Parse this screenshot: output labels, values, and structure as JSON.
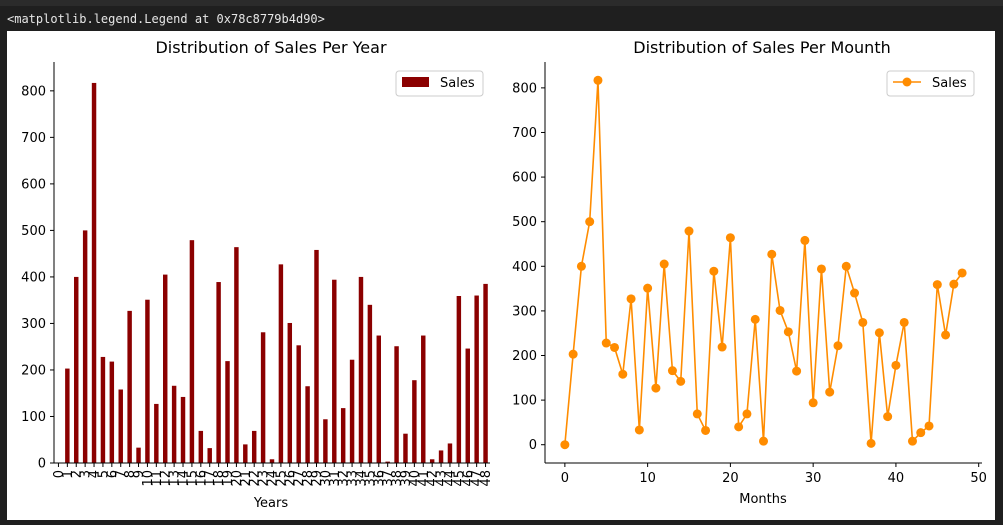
{
  "output_text": "<matplotlib.legend.Legend at 0x78c8779b4d90>",
  "colors": {
    "bar": "#8b0000",
    "line": "#ff8c00"
  },
  "chart_data": [
    {
      "type": "bar",
      "title": "Distribution of Sales Per Year",
      "xlabel": "Years",
      "ylabel": "",
      "legend": {
        "label": "Sales",
        "placement": "top-right"
      },
      "categories": [
        0,
        1,
        2,
        3,
        4,
        5,
        6,
        7,
        8,
        9,
        10,
        11,
        12,
        13,
        14,
        15,
        16,
        17,
        18,
        19,
        20,
        21,
        22,
        23,
        24,
        25,
        26,
        27,
        28,
        29,
        30,
        31,
        32,
        33,
        34,
        35,
        36,
        37,
        38,
        39,
        40,
        41,
        42,
        43,
        44,
        45,
        46,
        47,
        48
      ],
      "values": [
        0,
        203,
        400,
        500,
        817,
        228,
        218,
        158,
        327,
        33,
        351,
        127,
        405,
        166,
        142,
        479,
        69,
        32,
        389,
        219,
        464,
        40,
        69,
        281,
        8,
        427,
        301,
        253,
        165,
        458,
        94,
        394,
        118,
        222,
        400,
        340,
        274,
        3,
        251,
        63,
        178,
        274,
        8,
        27,
        42,
        359,
        246,
        360,
        385
      ],
      "ylim": [
        0,
        862
      ],
      "yticks": [
        0,
        100,
        200,
        300,
        400,
        500,
        600,
        700,
        800
      ]
    },
    {
      "type": "line",
      "title": "Distribution of Sales Per Mounth",
      "xlabel": "Months",
      "ylabel": "",
      "legend": {
        "label": "Sales",
        "placement": "top-right"
      },
      "x": [
        0,
        1,
        2,
        3,
        4,
        5,
        6,
        7,
        8,
        9,
        10,
        11,
        12,
        13,
        14,
        15,
        16,
        17,
        18,
        19,
        20,
        21,
        22,
        23,
        24,
        25,
        26,
        27,
        28,
        29,
        30,
        31,
        32,
        33,
        34,
        35,
        36,
        37,
        38,
        39,
        40,
        41,
        42,
        43,
        44,
        45,
        46,
        47,
        48
      ],
      "y": [
        0,
        203,
        400,
        500,
        817,
        228,
        218,
        158,
        327,
        33,
        351,
        127,
        405,
        166,
        142,
        479,
        69,
        32,
        389,
        219,
        464,
        40,
        69,
        281,
        8,
        427,
        301,
        253,
        165,
        458,
        94,
        394,
        118,
        222,
        400,
        340,
        274,
        3,
        251,
        63,
        178,
        274,
        8,
        27,
        42,
        359,
        246,
        360,
        385
      ],
      "xlim": [
        -2.4,
        50.4
      ],
      "ylim": [
        -41,
        858
      ],
      "xticks": [
        0,
        10,
        20,
        30,
        40,
        50
      ],
      "yticks": [
        0,
        100,
        200,
        300,
        400,
        500,
        600,
        700,
        800
      ]
    }
  ]
}
